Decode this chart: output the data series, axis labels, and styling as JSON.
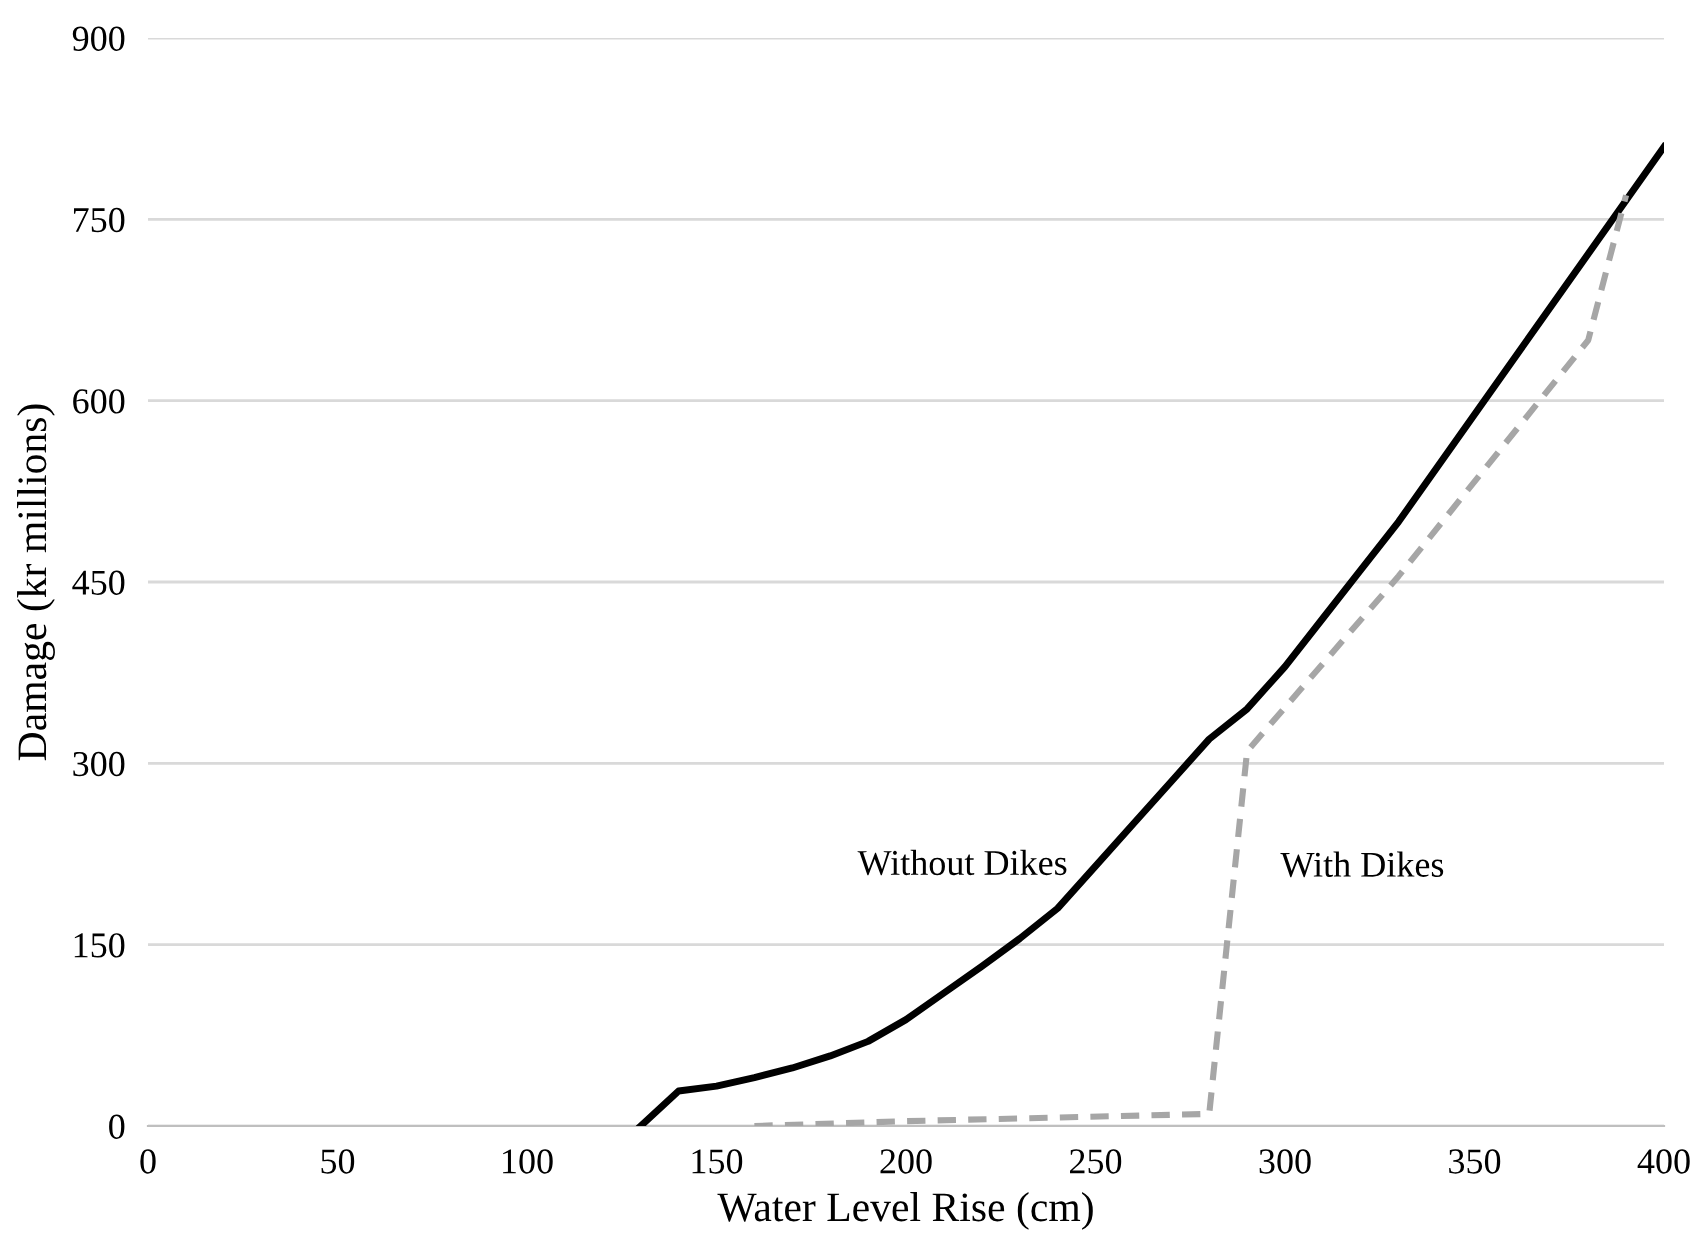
{
  "chart_data": {
    "type": "line",
    "xlabel": "Water Level Rise (cm)",
    "ylabel": "Damage (kr millions)",
    "xlim": [
      0,
      400
    ],
    "xticks": [
      0,
      50,
      100,
      150,
      200,
      250,
      300,
      350,
      400
    ],
    "ylim": [
      0,
      900
    ],
    "yticks": [
      0,
      150,
      300,
      450,
      600,
      750,
      900
    ],
    "grid": "y",
    "legend": false,
    "series": [
      {
        "name": "Without Dikes",
        "color": "#000000",
        "line_style": "solid",
        "x": [
          130,
          140,
          150,
          160,
          170,
          180,
          190,
          200,
          210,
          220,
          230,
          240,
          250,
          260,
          270,
          280,
          290,
          300,
          310,
          320,
          330,
          400
        ],
        "values": [
          0,
          29,
          33,
          40,
          48,
          58,
          70,
          88,
          110,
          132,
          155,
          180,
          215,
          250,
          285,
          320,
          345,
          380,
          420,
          460,
          500,
          810
        ]
      },
      {
        "name": "With Dikes",
        "color": "#a6a6a6",
        "line_style": "dashed",
        "x": [
          160,
          200,
          240,
          280,
          290,
          330,
          380,
          390
        ],
        "values": [
          0,
          4,
          7,
          10,
          310,
          455,
          650,
          770
        ]
      }
    ]
  }
}
